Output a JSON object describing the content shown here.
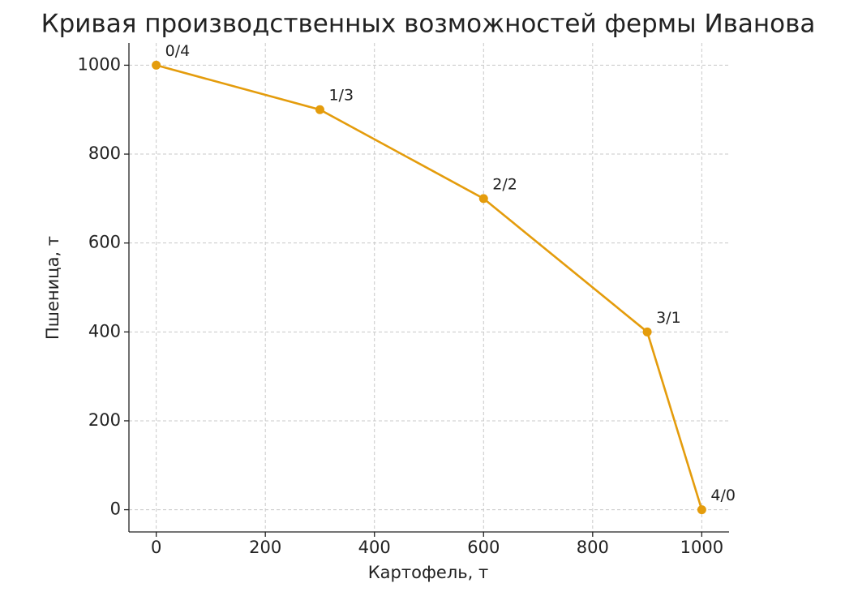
{
  "chart_data": {
    "type": "line",
    "title": "Кривая производственных возможностей фермы Иванова",
    "x_label": "Картофель, т",
    "y_label": "Пшеница, т",
    "x": [
      0,
      300,
      600,
      900,
      1000
    ],
    "series": [
      {
        "name": "Пшеница",
        "color": "#e49c0c",
        "values": [
          1000,
          900,
          700,
          400,
          0
        ],
        "value_labels": [
          "0/4",
          "1/3",
          "2/2",
          "3/1",
          "4/0"
        ]
      }
    ],
    "xlim": [
      -50,
      1050
    ],
    "ylim": [
      -50,
      1050
    ],
    "xticks": [
      0,
      200,
      400,
      600,
      800,
      1000
    ],
    "yticks": [
      0,
      200,
      400,
      600,
      800,
      1000
    ],
    "grid": true
  }
}
